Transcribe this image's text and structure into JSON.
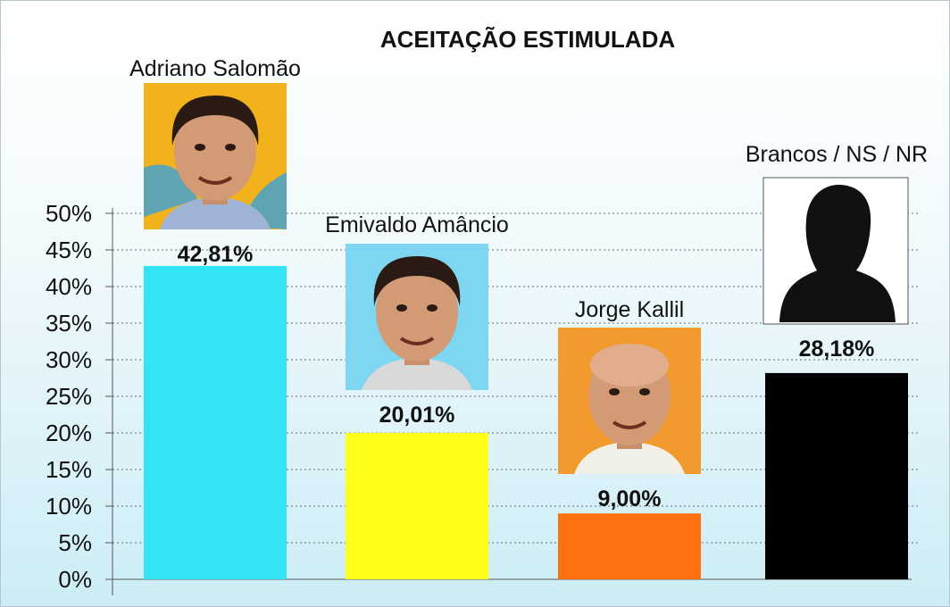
{
  "chart_data": {
    "type": "bar",
    "title": "ACEITAÇÃO ESTIMULADA",
    "categories": [
      "Adriano Salomão",
      "Emivaldo Amâncio",
      "Jorge Kallil",
      "Brancos / NS / NR"
    ],
    "values": [
      42.81,
      20.01,
      9.0,
      28.18
    ],
    "value_labels": [
      "42,81%",
      "20,01%",
      "9,00%",
      "28,18%"
    ],
    "colors": [
      "#33e4f4",
      "#ffff1a",
      "#ff7110",
      "#000000"
    ],
    "yticks": [
      "0%",
      "5%",
      "10%",
      "15%",
      "20%",
      "25%",
      "30%",
      "35%",
      "40%",
      "45%",
      "50%"
    ],
    "ylim": [
      0,
      50
    ],
    "grid": true,
    "xlabel": "",
    "ylabel": "",
    "photos": [
      "candidate-photo",
      "candidate-photo",
      "candidate-photo",
      "silhouette-placeholder"
    ]
  }
}
